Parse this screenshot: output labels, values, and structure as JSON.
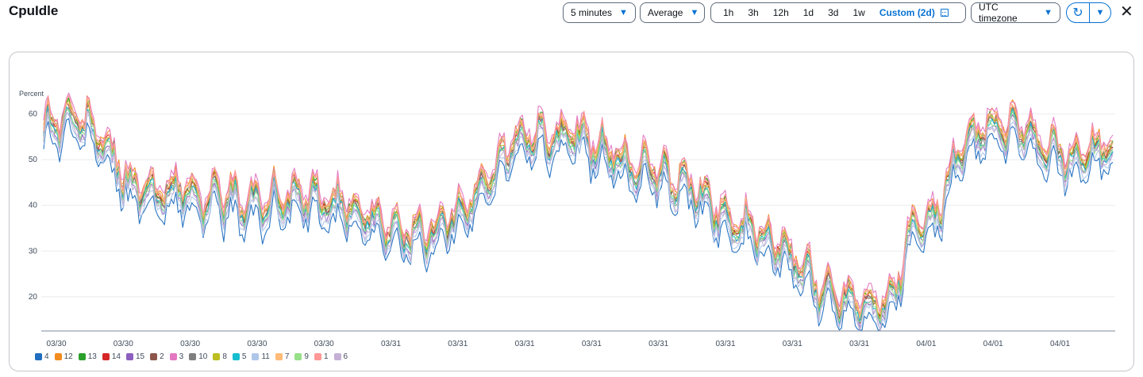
{
  "header": {
    "title": "CpuIdle",
    "period": "5 minutes",
    "statistic": "Average",
    "ranges": [
      "1h",
      "3h",
      "12h",
      "1d",
      "3d",
      "1w"
    ],
    "active_range": "Custom (2d)",
    "timezone": "UTC timezone",
    "icons": {
      "caret": "caret-down-icon",
      "calendar": "calendar-icon",
      "refresh": "refresh-icon",
      "close": "close-icon"
    }
  },
  "chart_data": {
    "type": "line",
    "ylabel": "Percent",
    "yticks": [
      20,
      30,
      40,
      50,
      60
    ],
    "ylim": [
      12.5,
      65.5
    ],
    "x_tick_labels": [
      "03/30",
      "03/30",
      "03/30",
      "03/30",
      "03/30",
      "03/31",
      "03/31",
      "03/31",
      "03/31",
      "03/31",
      "03/31",
      "03/31",
      "03/31",
      "04/01",
      "04/01",
      "04/01"
    ],
    "grid": true,
    "legend_position": "bottom-left",
    "base_curve": {
      "x": [
        0,
        1,
        2,
        3,
        4,
        5,
        6,
        7,
        8,
        9,
        10,
        11,
        12,
        13,
        14,
        15,
        16,
        17,
        18,
        19,
        20,
        21,
        22,
        23,
        24,
        25,
        26,
        27,
        28,
        29,
        30,
        31,
        32,
        33,
        34,
        35,
        36,
        37,
        38,
        39,
        40,
        41,
        42,
        43,
        44,
        45,
        46,
        47,
        48
      ],
      "y": [
        57,
        59,
        58,
        51,
        44,
        42,
        44,
        41,
        42,
        40,
        41,
        42,
        41,
        40,
        39,
        37,
        34,
        33,
        36,
        40,
        46,
        53,
        56,
        54,
        55,
        53,
        49,
        48,
        46,
        44,
        40,
        36,
        34,
        31,
        26,
        21,
        20,
        19,
        18,
        35,
        37,
        50,
        56,
        57,
        56,
        52,
        50,
        52,
        52
      ]
    },
    "series": [
      {
        "name": "4",
        "color": "#1f6ebf",
        "offset": -3.8,
        "noise_seed": 1
      },
      {
        "name": "12",
        "color": "#f28c1e",
        "offset": 1.6,
        "noise_seed": 2
      },
      {
        "name": "13",
        "color": "#2ca02c",
        "offset": 0.9,
        "noise_seed": 3
      },
      {
        "name": "14",
        "color": "#d62728",
        "offset": 0.4,
        "noise_seed": 4
      },
      {
        "name": "15",
        "color": "#8c5fbf",
        "offset": -1.4,
        "noise_seed": 5
      },
      {
        "name": "2",
        "color": "#8c564b",
        "offset": 0.1,
        "noise_seed": 6
      },
      {
        "name": "3",
        "color": "#e377c2",
        "offset": 2.2,
        "noise_seed": 7
      },
      {
        "name": "10",
        "color": "#7f7f7f",
        "offset": -0.2,
        "noise_seed": 8
      },
      {
        "name": "8",
        "color": "#bcbd22",
        "offset": 0.6,
        "noise_seed": 9
      },
      {
        "name": "5",
        "color": "#17becf",
        "offset": -0.6,
        "noise_seed": 10
      },
      {
        "name": "11",
        "color": "#aec7e8",
        "offset": -2.4,
        "noise_seed": 11
      },
      {
        "name": "7",
        "color": "#ffbb78",
        "offset": 1.0,
        "noise_seed": 12
      },
      {
        "name": "9",
        "color": "#98df8a",
        "offset": -0.9,
        "noise_seed": 13
      },
      {
        "name": "1",
        "color": "#ff9896",
        "offset": 1.3,
        "noise_seed": 14
      },
      {
        "name": "6",
        "color": "#c5b0d5",
        "offset": -1.8,
        "noise_seed": 15
      }
    ]
  }
}
